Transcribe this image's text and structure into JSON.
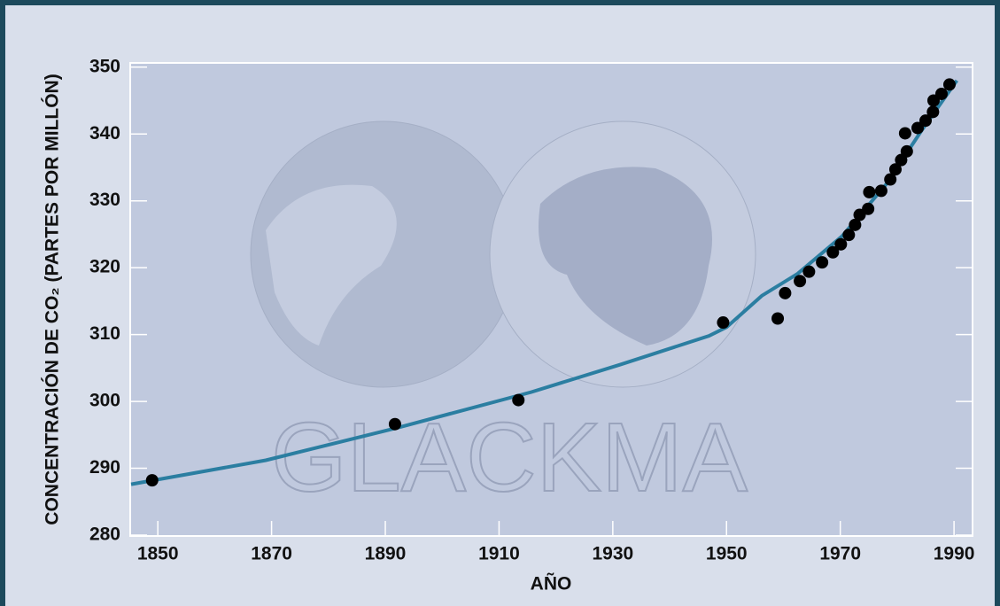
{
  "chart_data": {
    "type": "scatter",
    "watermark": "GLACKMA",
    "xlabel": "AÑO",
    "ylabel": "CONCENTRACIÓN DE CO₂ (PARTES POR MILLÓN)",
    "x": [
      1849.0,
      1891.7,
      1913.4,
      1949.4,
      1959.0,
      1960.3,
      1962.9,
      1964.5,
      1966.8,
      1968.7,
      1970.1,
      1971.5,
      1972.6,
      1973.4,
      1974.9,
      1975.1,
      1977.2,
      1978.8,
      1979.7,
      1980.7,
      1981.7,
      1981.4,
      1983.6,
      1985.0,
      1986.3,
      1986.4,
      1987.8,
      1989.2
    ],
    "values": [
      288.2,
      296.6,
      300.2,
      311.8,
      312.4,
      316.2,
      318.0,
      319.4,
      320.8,
      322.3,
      323.5,
      324.9,
      326.4,
      327.9,
      328.8,
      331.3,
      331.5,
      333.2,
      334.7,
      336.1,
      337.4,
      340.1,
      340.9,
      342.0,
      343.3,
      345.0,
      346.0,
      347.4
    ],
    "color": "#000000",
    "trend": {
      "x": [
        1845.3,
        1869,
        1892.3,
        1915.7,
        1931.3,
        1946.9,
        1950,
        1956.2,
        1962.5,
        1970.3,
        1978.0,
        1984.2,
        1990.5
      ],
      "values": [
        287.6,
        291.2,
        296.1,
        301.4,
        305.5,
        309.8,
        311.1,
        315.8,
        319.1,
        324.7,
        332.4,
        340.4,
        348.0
      ],
      "color": "#2b7ea1"
    },
    "xlim": [
      1845.3,
      1993.1
    ],
    "ylim": [
      280,
      350.5
    ],
    "xticks": [
      1850,
      1870,
      1890,
      1910,
      1930,
      1950,
      1970,
      1990
    ],
    "yticks": [
      280,
      290,
      300,
      310,
      320,
      330,
      340,
      350
    ]
  }
}
